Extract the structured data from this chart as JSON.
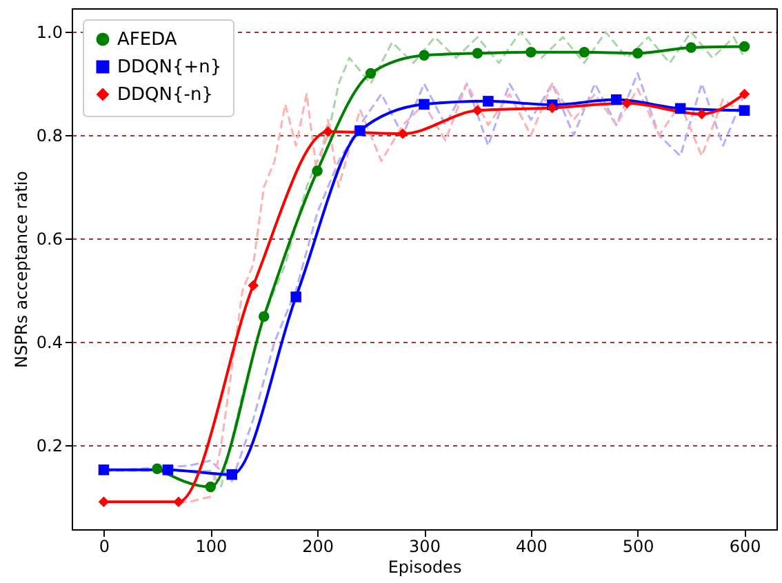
{
  "chart_data": {
    "type": "line",
    "xlabel": "Episodes",
    "ylabel": "NSPRs acceptance ratio",
    "xlim": [
      -30,
      630
    ],
    "xticks": [
      0,
      100,
      200,
      300,
      400,
      500,
      600
    ],
    "ylim": [
      0.037,
      1.046
    ],
    "yticks": [
      0.2,
      0.4,
      0.6,
      0.8,
      {
        "value": 1.0,
        "label": "1.0"
      }
    ],
    "grid": "y",
    "legend": "top left",
    "series": [
      {
        "color": "#a8d5a8",
        "line_style": "dashed",
        "marker": "none",
        "x": [
          0,
          100,
          110,
          130,
          150,
          170,
          190,
          210,
          220,
          230,
          250,
          270,
          290,
          310,
          330,
          350,
          370,
          390,
          410,
          430,
          450,
          470,
          490,
          510,
          530,
          550,
          570,
          590,
          600
        ],
        "values": [
          0.15,
          0.15,
          0.12,
          0.3,
          0.45,
          0.55,
          0.7,
          0.8,
          0.9,
          0.95,
          0.9,
          0.98,
          0.94,
          0.99,
          0.95,
          0.99,
          0.94,
          1.0,
          0.95,
          0.99,
          0.94,
          1.0,
          0.95,
          0.99,
          0.94,
          1.0,
          0.95,
          0.99,
          0.95
        ]
      },
      {
        "color": "#b0b0ff",
        "line_style": "dashed",
        "marker": "none",
        "x": [
          0,
          80,
          100,
          120,
          140,
          160,
          180,
          200,
          220,
          240,
          260,
          280,
          300,
          320,
          340,
          360,
          380,
          400,
          420,
          440,
          460,
          480,
          500,
          520,
          540,
          560,
          580,
          600
        ],
        "values": [
          0.15,
          0.16,
          0.17,
          0.13,
          0.25,
          0.4,
          0.5,
          0.65,
          0.75,
          0.82,
          0.88,
          0.8,
          0.9,
          0.82,
          0.9,
          0.78,
          0.9,
          0.83,
          0.9,
          0.8,
          0.9,
          0.82,
          0.92,
          0.8,
          0.76,
          0.9,
          0.78,
          0.88
        ]
      },
      {
        "color": "#ffb0b0",
        "line_style": "dashed",
        "marker": "none",
        "x": [
          0,
          80,
          100,
          110,
          120,
          130,
          140,
          150,
          160,
          170,
          180,
          190,
          200,
          210,
          220,
          240,
          260,
          280,
          300,
          320,
          340,
          360,
          380,
          400,
          420,
          440,
          460,
          480,
          500,
          520,
          540,
          560,
          580,
          600
        ],
        "values": [
          0.09,
          0.09,
          0.1,
          0.2,
          0.35,
          0.5,
          0.55,
          0.7,
          0.75,
          0.86,
          0.78,
          0.88,
          0.72,
          0.83,
          0.7,
          0.85,
          0.75,
          0.82,
          0.86,
          0.79,
          0.9,
          0.82,
          0.88,
          0.8,
          0.9,
          0.83,
          0.88,
          0.82,
          0.89,
          0.8,
          0.86,
          0.76,
          0.87,
          0.84
        ]
      },
      {
        "name": "AFEDA",
        "color": "#008000",
        "line_style": "solid",
        "marker": "circle",
        "x": [
          50,
          100,
          150,
          200,
          250,
          300,
          350,
          400,
          450,
          500,
          550,
          600
        ],
        "values": [
          0.154,
          0.119,
          0.449,
          0.731,
          0.92,
          0.955,
          0.959,
          0.961,
          0.961,
          0.959,
          0.97,
          0.972
        ]
      },
      {
        "name": "DDQN{+n}",
        "color": "#0000ff",
        "line_style": "solid",
        "marker": "square",
        "x": [
          0,
          60,
          120,
          180,
          240,
          300,
          360,
          420,
          480,
          540,
          600
        ],
        "values": [
          0.152,
          0.152,
          0.143,
          0.487,
          0.809,
          0.86,
          0.866,
          0.859,
          0.869,
          0.852,
          0.848
        ]
      },
      {
        "name": "DDQN{-n}",
        "color": "#ff0000",
        "line_style": "solid",
        "marker": "diamond",
        "x": [
          0,
          70,
          140,
          210,
          280,
          350,
          420,
          490,
          560,
          600
        ],
        "values": [
          0.09,
          0.09,
          0.509,
          0.807,
          0.803,
          0.848,
          0.853,
          0.862,
          0.841,
          0.88
        ]
      }
    ]
  }
}
